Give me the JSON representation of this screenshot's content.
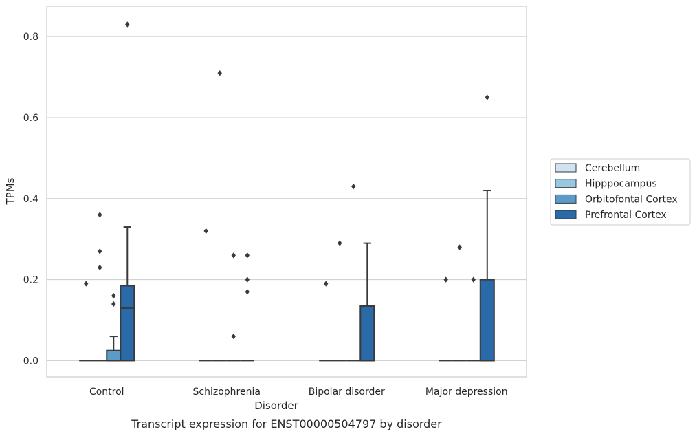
{
  "chart_data": {
    "type": "box",
    "caption": "Transcript expression for ENST00000504797 by disorder",
    "xlabel": "Disorder",
    "ylabel": "TPMs",
    "ylim": [
      -0.04,
      0.875
    ],
    "yticks": [
      0.0,
      0.2,
      0.4,
      0.6,
      0.8
    ],
    "ytick_labels": [
      "0.0",
      "0.2",
      "0.4",
      "0.6",
      "0.8"
    ],
    "categories": [
      "Control",
      "Schizophrenia",
      "Bipolar disorder",
      "Major depression"
    ],
    "grid": true,
    "legend_position": "right",
    "series": [
      {
        "name": "Cerebellum",
        "color": "#d1e2f2",
        "boxes": [
          {
            "q1": 0,
            "median": 0,
            "q3": 0,
            "whislo": 0,
            "whishi": 0,
            "fliers": [
              0.19
            ]
          },
          {
            "q1": 0,
            "median": 0,
            "q3": 0,
            "whislo": 0,
            "whishi": 0,
            "fliers": [
              0.32
            ]
          },
          {
            "q1": 0,
            "median": 0,
            "q3": 0,
            "whislo": 0,
            "whishi": 0,
            "fliers": [
              0.19
            ]
          },
          {
            "q1": 0,
            "median": 0,
            "q3": 0,
            "whislo": 0,
            "whishi": 0,
            "fliers": [
              0.2
            ]
          }
        ]
      },
      {
        "name": "Hipppocampus",
        "color": "#9ac7e0",
        "boxes": [
          {
            "q1": 0,
            "median": 0,
            "q3": 0,
            "whislo": 0,
            "whishi": 0,
            "fliers": [
              0.36,
              0.27,
              0.23
            ]
          },
          {
            "q1": 0,
            "median": 0,
            "q3": 0,
            "whislo": 0,
            "whishi": 0,
            "fliers": [
              0.71
            ]
          },
          {
            "q1": 0,
            "median": 0,
            "q3": 0,
            "whislo": 0,
            "whishi": 0,
            "fliers": [
              0.29
            ]
          },
          {
            "q1": 0,
            "median": 0,
            "q3": 0,
            "whislo": 0,
            "whishi": 0,
            "fliers": [
              0.28
            ]
          }
        ]
      },
      {
        "name": "Orbitofontal Cortex",
        "color": "#5a9bc9",
        "boxes": [
          {
            "q1": 0,
            "median": 0,
            "q3": 0.025,
            "whislo": 0,
            "whishi": 0.06,
            "fliers": [
              0.16,
              0.14
            ]
          },
          {
            "q1": 0,
            "median": 0,
            "q3": 0,
            "whislo": 0,
            "whishi": 0,
            "fliers": [
              0.26,
              0.06
            ]
          },
          {
            "q1": 0,
            "median": 0,
            "q3": 0,
            "whislo": 0,
            "whishi": 0,
            "fliers": [
              0.43
            ]
          },
          {
            "q1": 0,
            "median": 0,
            "q3": 0,
            "whislo": 0,
            "whishi": 0,
            "fliers": [
              0.2
            ]
          }
        ]
      },
      {
        "name": "Prefrontal Cortex",
        "color": "#2a6aa9",
        "boxes": [
          {
            "q1": 0,
            "median": 0.13,
            "q3": 0.185,
            "whislo": 0,
            "whishi": 0.33,
            "fliers": [
              0.83
            ]
          },
          {
            "q1": 0,
            "median": 0,
            "q3": 0,
            "whislo": 0,
            "whishi": 0,
            "fliers": [
              0.26,
              0.2,
              0.17
            ]
          },
          {
            "q1": 0,
            "median": 0,
            "q3": 0.135,
            "whislo": 0,
            "whishi": 0.29,
            "fliers": []
          },
          {
            "q1": 0,
            "median": 0,
            "q3": 0.2,
            "whislo": 0,
            "whishi": 0.42,
            "fliers": [
              0.65
            ]
          }
        ]
      }
    ]
  }
}
